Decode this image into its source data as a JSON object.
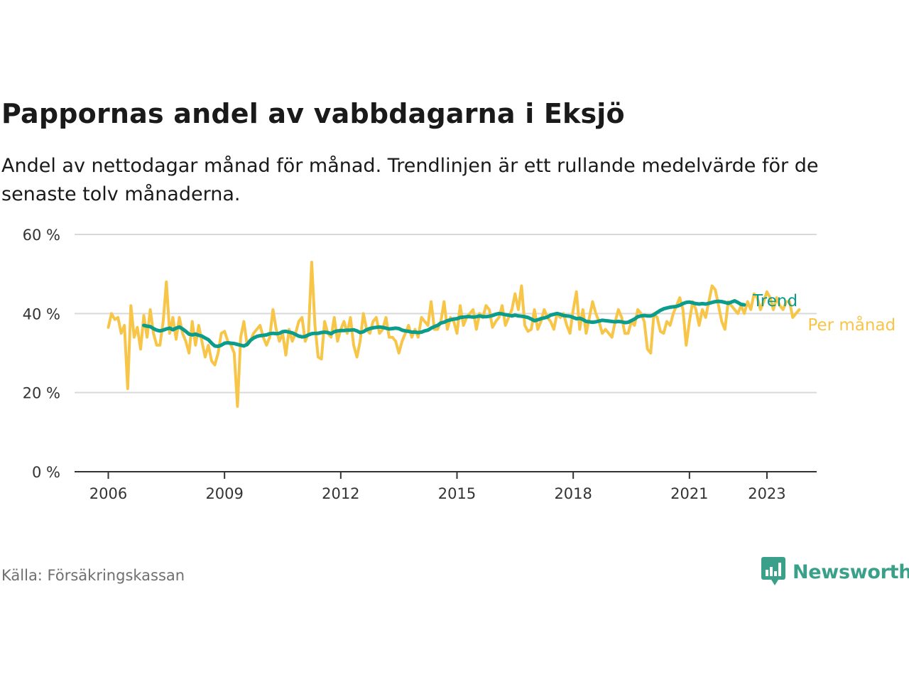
{
  "title": "Pappornas andel av vabbdagarna i Eksjö",
  "subtitle": "Andel av nettodagar månad för månad. Trendlinjen är ett rullande medelvärde för de senaste tolv månaderna.",
  "source": "Källa: Försäkringskassan",
  "brand": {
    "name": "Newsworthy",
    "icon": "newsworthy-logo-icon",
    "color": "#3aa08a"
  },
  "colors": {
    "trend": "#0b9c8c",
    "monthly": "#f7c548",
    "grid": "#d9d9d9",
    "axis": "#333333",
    "text": "#333333"
  },
  "chart_data": {
    "type": "line",
    "title": "Pappornas andel av vabbdagarna i Eksjö",
    "xlabel": "",
    "ylabel": "",
    "ylim": [
      0,
      60
    ],
    "y_ticks": [
      0,
      20,
      40,
      60
    ],
    "y_tick_labels": [
      "0 %",
      "20 %",
      "40 %",
      "60 %"
    ],
    "xlim": [
      "2006-01",
      "2024-01"
    ],
    "x_ticks": [
      "2006-01",
      "2009-01",
      "2012-01",
      "2015-01",
      "2018-01",
      "2021-01",
      "2023-01"
    ],
    "x_tick_labels": [
      "2006",
      "2009",
      "2012",
      "2015",
      "2018",
      "2021",
      "2023"
    ],
    "grid": true,
    "legend": "inline labels at right end of lines",
    "series": [
      {
        "name": "Per månad",
        "color": "#f7c548",
        "start": "2006-01",
        "values": [
          36.5,
          40,
          38.5,
          39,
          35,
          37,
          21,
          42,
          34,
          36.5,
          31,
          39.5,
          34,
          41,
          35,
          32,
          32,
          38,
          48,
          35,
          39,
          33.5,
          39,
          35,
          33,
          30,
          38,
          32,
          37,
          33,
          29,
          32,
          28,
          27,
          30,
          35,
          35.5,
          33,
          32,
          30,
          16.5,
          34,
          38,
          32,
          33,
          35,
          36,
          37,
          34,
          32,
          34,
          41,
          36,
          33,
          35,
          29.5,
          36,
          33,
          35,
          38,
          39,
          33,
          35,
          53,
          37,
          29,
          28.5,
          38,
          35,
          34,
          39,
          33,
          36,
          38,
          35,
          39,
          32,
          29,
          33,
          40,
          36,
          35,
          38,
          39,
          35,
          36,
          39,
          34,
          34,
          33,
          30,
          33,
          35,
          37,
          34,
          36,
          34,
          39,
          38,
          37,
          43,
          36,
          36,
          38,
          43,
          36,
          39,
          38,
          35,
          42,
          37,
          39,
          40,
          41,
          36,
          40,
          39,
          42,
          41,
          36.5,
          38,
          39,
          42,
          37,
          39,
          41,
          45,
          41,
          47,
          37,
          35.5,
          36,
          41,
          36,
          38,
          41,
          39,
          38,
          36,
          40,
          39,
          40,
          37,
          35,
          41,
          45.5,
          36,
          41,
          35,
          39,
          43,
          40,
          38,
          35,
          36,
          35,
          34,
          38,
          41,
          39,
          35,
          35,
          38,
          37,
          41,
          40,
          38,
          31,
          30,
          40,
          39,
          35.5,
          35,
          38,
          37,
          40,
          42,
          44,
          41,
          32,
          38,
          43,
          41,
          37,
          41,
          39,
          43,
          47,
          46,
          42,
          38,
          36,
          43,
          42,
          41,
          40,
          42,
          40,
          43,
          41,
          45,
          44,
          41,
          43,
          45.5,
          44,
          41,
          44,
          42,
          41,
          43,
          43,
          39,
          40,
          41
        ]
      },
      {
        "name": "Trend",
        "color": "#0b9c8c",
        "start": "2006-12",
        "values": [
          37,
          36.8,
          36.7,
          36.2,
          35.8,
          35.6,
          35.8,
          36.1,
          36.3,
          35.9,
          36.3,
          36.6,
          36.1,
          35.5,
          34.8,
          34.6,
          34.8,
          34.5,
          34.3,
          33.8,
          33.4,
          32.5,
          31.8,
          31.7,
          32,
          32.5,
          32.6,
          32.5,
          32.4,
          32.2,
          32,
          31.8,
          32.2,
          33.2,
          33.8,
          34.2,
          34.4,
          34.5,
          34.6,
          34.9,
          35,
          34.9,
          35,
          35.4,
          35.5,
          35.3,
          35.1,
          34.7,
          34.3,
          34.1,
          34.2,
          34.6,
          34.9,
          35,
          35,
          35.2,
          35.3,
          35.2,
          34.9,
          35.4,
          35.6,
          35.7,
          35.7,
          35.8,
          35.8,
          35.9,
          35.6,
          35.2,
          35.4,
          35.9,
          36.2,
          36.4,
          36.5,
          36.6,
          36.5,
          36.3,
          36.1,
          36.2,
          36.3,
          36.2,
          35.8,
          35.6,
          35.5,
          35.3,
          35.3,
          35.2,
          35.3,
          35.6,
          35.8,
          36.3,
          36.7,
          37,
          37.6,
          37.8,
          38.2,
          38.4,
          38.6,
          38.7,
          39,
          39.1,
          39.2,
          39.2,
          39.1,
          39.2,
          39.4,
          39.2,
          39.2,
          39.3,
          39.5,
          39.8,
          40,
          39.9,
          39.7,
          39.6,
          39.4,
          39.6,
          39.4,
          39.3,
          39.2,
          39,
          38.6,
          38.2,
          38.4,
          38.7,
          38.9,
          39.1,
          39.6,
          39.8,
          40,
          39.8,
          39.5,
          39.4,
          39.3,
          39,
          38.7,
          38.8,
          38.5,
          38,
          37.9,
          37.8,
          37.9,
          38.1,
          38.3,
          38.2,
          38.1,
          38,
          37.9,
          38,
          37.9,
          37.7,
          37.8,
          38.2,
          38.6,
          39.2,
          39.4,
          39.5,
          39.4,
          39.4,
          39.7,
          40.3,
          40.8,
          41.2,
          41.4,
          41.6,
          41.7,
          41.8,
          42.1,
          42.5,
          42.8,
          42.9,
          42.7,
          42.5,
          42.4,
          42.5,
          42.4,
          42.6,
          42.8,
          43,
          43.1,
          43,
          42.8,
          42.6,
          42.9,
          43.2,
          42.8,
          42.3,
          42.2
        ]
      }
    ]
  }
}
